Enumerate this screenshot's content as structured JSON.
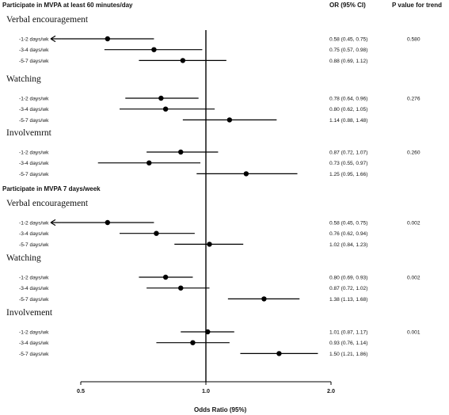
{
  "chart_data": {
    "type": "forest",
    "column_headers": {
      "or": "OR (95% CI)",
      "p": "P value for trend"
    },
    "xlabel": "Odds Ratio (95%)",
    "x_ticks": [
      0.5,
      1.0,
      2.0
    ],
    "x_tick_labels": [
      "0.5",
      "1.0",
      "2.0"
    ],
    "reference_line": 1.0,
    "panels": [
      {
        "title": "Participate in MVPA at least 60 minutes/day",
        "groups": [
          {
            "name": "Verbal encouragement",
            "p_value": "0.580",
            "rows": [
              {
                "label": "-1-2 days/wk",
                "or": 0.58,
                "lo": 0.45,
                "hi": 0.75,
                "or_text": "0.58 (0.45, 0.75)",
                "lower_arrow": true
              },
              {
                "label": "-3-4 days/wk",
                "or": 0.75,
                "lo": 0.57,
                "hi": 0.98,
                "or_text": "0.75 (0.57, 0.98)"
              },
              {
                "label": "-5-7 days/wk",
                "or": 0.88,
                "lo": 0.69,
                "hi": 1.12,
                "or_text": "0.88 (0.69, 1.12)"
              }
            ]
          },
          {
            "name": "Watching",
            "p_value": "0.276",
            "rows": [
              {
                "label": "-1-2 days/wk",
                "or": 0.78,
                "lo": 0.64,
                "hi": 0.96,
                "or_text": "0.78 (0.64, 0.96)"
              },
              {
                "label": "-3-4 days/wk",
                "or": 0.8,
                "lo": 0.62,
                "hi": 1.05,
                "or_text": "0.80 (0.62, 1.05)"
              },
              {
                "label": "-5-7 days/wk",
                "or": 1.14,
                "lo": 0.88,
                "hi": 1.48,
                "or_text": "1.14 (0.88, 1.48)"
              }
            ]
          },
          {
            "name": "Involvemrnt",
            "p_value": "0.260",
            "rows": [
              {
                "label": "-1-2 days/wk",
                "or": 0.87,
                "lo": 0.72,
                "hi": 1.07,
                "or_text": "0.87 (0.72, 1.07)"
              },
              {
                "label": "-3-4 days/wk",
                "or": 0.73,
                "lo": 0.55,
                "hi": 0.97,
                "or_text": "0.73 (0.55, 0.97)"
              },
              {
                "label": "-5-7 days/wk",
                "or": 1.25,
                "lo": 0.95,
                "hi": 1.66,
                "or_text": "1.25 (0.95, 1.66)"
              }
            ]
          }
        ]
      },
      {
        "title": "Participate in MVPA 7 days/week",
        "groups": [
          {
            "name": "Verbal encouragement",
            "p_value": "0.002",
            "rows": [
              {
                "label": "-1-2 days/wk",
                "or": 0.58,
                "lo": 0.45,
                "hi": 0.75,
                "or_text": "0.58 (0.45, 0.75)",
                "lower_arrow": true
              },
              {
                "label": "-3-4 days/wk",
                "or": 0.76,
                "lo": 0.62,
                "hi": 0.94,
                "or_text": "0.76 (0.62, 0.94)"
              },
              {
                "label": "-5-7 days/wk",
                "or": 1.02,
                "lo": 0.84,
                "hi": 1.23,
                "or_text": "1.02 (0.84, 1.23)"
              }
            ]
          },
          {
            "name": "Watching",
            "p_value": "0.002",
            "rows": [
              {
                "label": "-1-2 days/wk",
                "or": 0.8,
                "lo": 0.69,
                "hi": 0.93,
                "or_text": "0.80 (0.69, 0.93)"
              },
              {
                "label": "-3-4 days/wk",
                "or": 0.87,
                "lo": 0.72,
                "hi": 1.02,
                "or_text": "0.87 (0.72, 1.02)"
              },
              {
                "label": "-5-7 days/wk",
                "or": 1.38,
                "lo": 1.13,
                "hi": 1.68,
                "or_text": "1.38 (1.13, 1.68)"
              }
            ]
          },
          {
            "name": "Involvement",
            "p_value": "0.001",
            "rows": [
              {
                "label": "-1-2 days/wk",
                "or": 1.01,
                "lo": 0.87,
                "hi": 1.17,
                "or_text": "1.01 (0.87, 1.17)"
              },
              {
                "label": "-3-4 days/wk",
                "or": 0.93,
                "lo": 0.76,
                "hi": 1.14,
                "or_text": "0.93 (0.76, 1.14)"
              },
              {
                "label": "-5-7 days/wk",
                "or": 1.5,
                "lo": 1.21,
                "hi": 1.86,
                "or_text": "1.50 (1.21, 1.86)"
              }
            ]
          }
        ]
      }
    ]
  }
}
